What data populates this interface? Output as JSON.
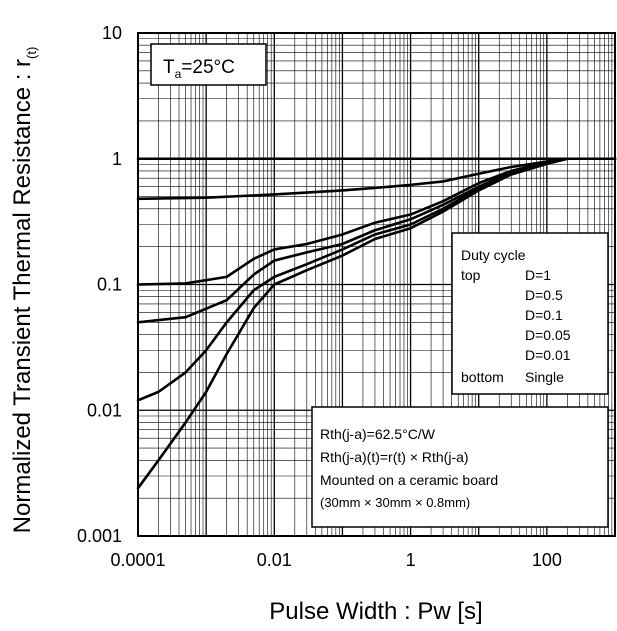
{
  "chart_data": {
    "type": "line",
    "xscale": "log",
    "yscale": "log",
    "xlim": [
      0.0001,
      1000
    ],
    "ylim": [
      0.001,
      10
    ],
    "xlabel": "Pulse Width : Pw [s]",
    "ylabel_main": "Normalized Transient Thermal Resistance : r",
    "ylabel_sub": "(t)",
    "x_ticks": [
      {
        "value": 0.0001,
        "label": "0.0001"
      },
      {
        "value": 0.01,
        "label": "0.01"
      },
      {
        "value": 1,
        "label": "1"
      },
      {
        "value": 100,
        "label": "100"
      }
    ],
    "y_ticks": [
      {
        "value": 10,
        "label": "10"
      },
      {
        "value": 1,
        "label": "1"
      },
      {
        "value": 0.1,
        "label": "0.1"
      },
      {
        "value": 0.01,
        "label": "0.01"
      },
      {
        "value": 0.001,
        "label": "0.001"
      }
    ],
    "grid": true,
    "condition": {
      "main": "T",
      "sub": "a",
      "rest": "=25°C"
    },
    "legend": {
      "title": "Duty cycle",
      "top_label": "top",
      "bottom_label": "bottom",
      "entries": [
        "D=1",
        "D=0.5",
        "D=0.1",
        "D=0.05",
        "D=0.01",
        "Single"
      ]
    },
    "info": {
      "lines": [
        "Rth(j-a)=62.5°C/W",
        "Rth(j-a)(t)=r(t) × Rth(j-a)",
        "Mounted on a ceramic board",
        "(30mm × 30mm × 0.8mm)"
      ]
    },
    "series": [
      {
        "values": [
          [
            0.0001,
            1
          ],
          [
            1000,
            1
          ]
        ]
      },
      {
        "values": [
          [
            0.0001,
            0.48
          ],
          [
            0.001,
            0.49
          ],
          [
            0.01,
            0.52
          ],
          [
            0.1,
            0.56
          ],
          [
            0.5,
            0.6
          ],
          [
            1,
            0.62
          ],
          [
            3,
            0.66
          ],
          [
            10,
            0.76
          ],
          [
            30,
            0.86
          ],
          [
            100,
            0.95
          ],
          [
            200,
            1
          ],
          [
            1000,
            1
          ]
        ]
      },
      {
        "values": [
          [
            0.0001,
            0.1
          ],
          [
            0.0005,
            0.102
          ],
          [
            0.002,
            0.115
          ],
          [
            0.005,
            0.16
          ],
          [
            0.01,
            0.19
          ],
          [
            0.03,
            0.21
          ],
          [
            0.1,
            0.25
          ],
          [
            0.3,
            0.31
          ],
          [
            1,
            0.36
          ],
          [
            3,
            0.46
          ],
          [
            10,
            0.64
          ],
          [
            30,
            0.8
          ],
          [
            100,
            0.94
          ],
          [
            200,
            1
          ],
          [
            1000,
            1
          ]
        ]
      },
      {
        "values": [
          [
            0.0001,
            0.05
          ],
          [
            0.0005,
            0.055
          ],
          [
            0.002,
            0.075
          ],
          [
            0.005,
            0.12
          ],
          [
            0.01,
            0.155
          ],
          [
            0.03,
            0.18
          ],
          [
            0.1,
            0.21
          ],
          [
            0.3,
            0.27
          ],
          [
            1,
            0.33
          ],
          [
            3,
            0.43
          ],
          [
            10,
            0.6
          ],
          [
            30,
            0.78
          ],
          [
            100,
            0.93
          ],
          [
            200,
            1
          ],
          [
            1000,
            1
          ]
        ]
      },
      {
        "values": [
          [
            0.0001,
            0.012
          ],
          [
            0.0002,
            0.014
          ],
          [
            0.0005,
            0.02
          ],
          [
            0.001,
            0.03
          ],
          [
            0.002,
            0.05
          ],
          [
            0.005,
            0.09
          ],
          [
            0.01,
            0.115
          ],
          [
            0.03,
            0.145
          ],
          [
            0.1,
            0.19
          ],
          [
            0.3,
            0.25
          ],
          [
            1,
            0.3
          ],
          [
            3,
            0.4
          ],
          [
            10,
            0.58
          ],
          [
            30,
            0.76
          ],
          [
            100,
            0.92
          ],
          [
            200,
            1
          ],
          [
            1000,
            1
          ]
        ]
      },
      {
        "values": [
          [
            0.0001,
            0.0024
          ],
          [
            0.0002,
            0.004
          ],
          [
            0.0005,
            0.008
          ],
          [
            0.001,
            0.014
          ],
          [
            0.002,
            0.028
          ],
          [
            0.005,
            0.065
          ],
          [
            0.01,
            0.1
          ],
          [
            0.03,
            0.13
          ],
          [
            0.1,
            0.17
          ],
          [
            0.3,
            0.23
          ],
          [
            1,
            0.28
          ],
          [
            3,
            0.38
          ],
          [
            10,
            0.56
          ],
          [
            30,
            0.75
          ],
          [
            100,
            0.91
          ],
          [
            200,
            1
          ],
          [
            1000,
            1
          ]
        ]
      }
    ]
  }
}
